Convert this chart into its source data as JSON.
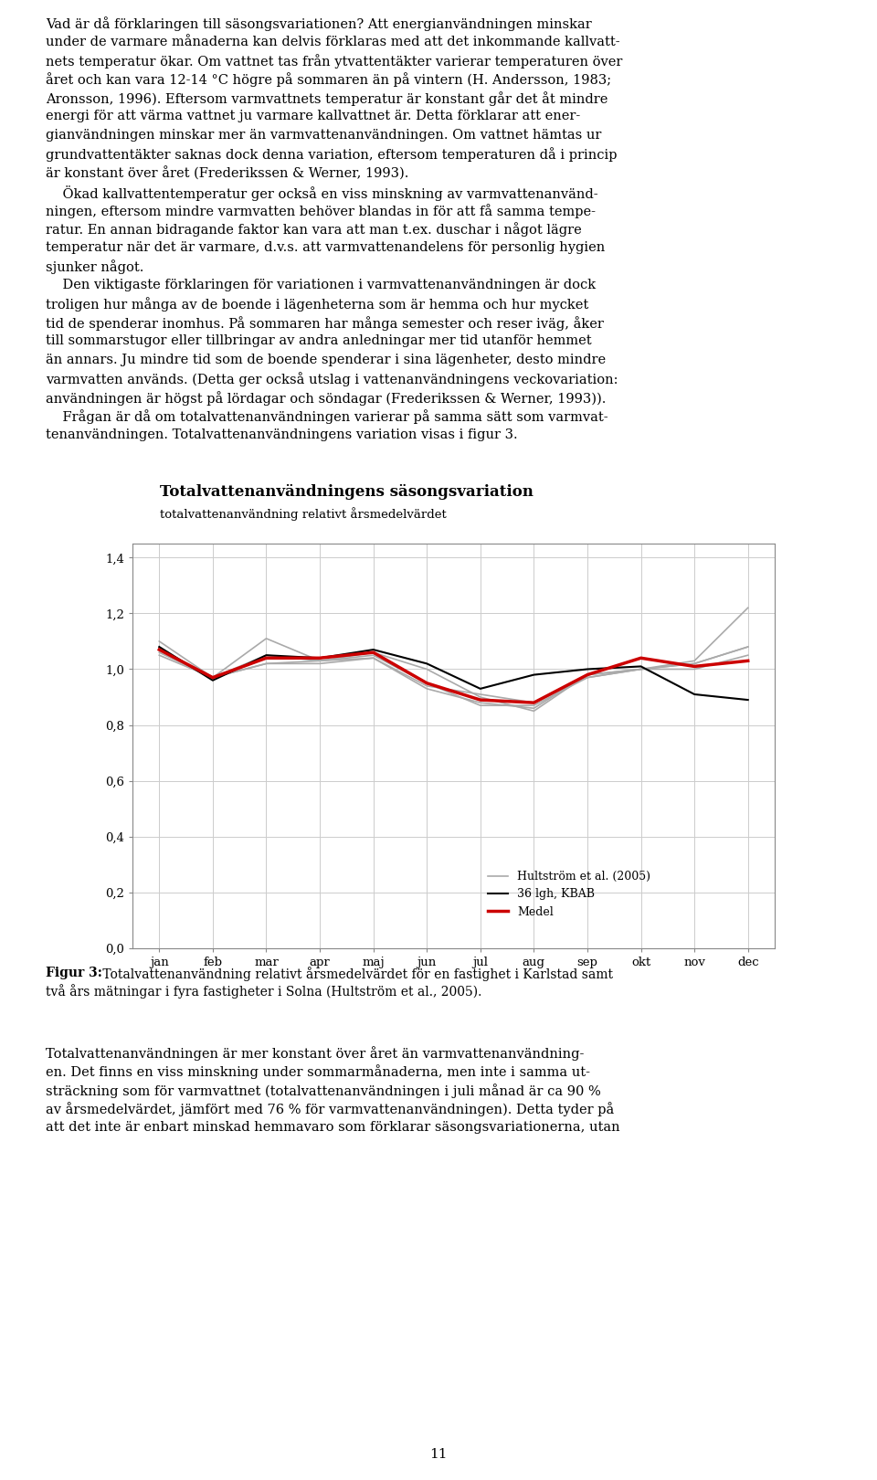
{
  "title": "Totalvattenanvändningens säsongsvariation",
  "subtitle": "totalvattenanvändning relativt årsmedelvärdet",
  "xlabel_ticks": [
    "jan",
    "feb",
    "mar",
    "apr",
    "maj",
    "jun",
    "jul",
    "aug",
    "sep",
    "okt",
    "nov",
    "dec"
  ],
  "ylim": [
    0.0,
    1.45
  ],
  "yticks": [
    0.0,
    0.2,
    0.4,
    0.6,
    0.8,
    1.0,
    1.2,
    1.4
  ],
  "ytick_labels": [
    "0,0",
    "0,2",
    "0,4",
    "0,6",
    "0,8",
    "1,0",
    "1,2",
    "1,4"
  ],
  "series_gray": [
    [
      1.07,
      0.97,
      1.05,
      1.03,
      1.05,
      0.95,
      0.87,
      0.87,
      0.97,
      1.0,
      1.02,
      1.08
    ],
    [
      1.06,
      0.97,
      1.02,
      1.03,
      1.06,
      1.0,
      0.9,
      0.85,
      0.98,
      1.0,
      1.03,
      1.22
    ],
    [
      1.1,
      0.97,
      1.11,
      1.03,
      1.04,
      0.93,
      0.88,
      0.86,
      0.98,
      1.0,
      1.0,
      1.05
    ],
    [
      1.05,
      0.97,
      1.02,
      1.02,
      1.04,
      0.94,
      0.91,
      0.88,
      0.97,
      1.0,
      1.02,
      1.08
    ]
  ],
  "series_black": [
    1.08,
    0.96,
    1.05,
    1.04,
    1.07,
    1.02,
    0.93,
    0.98,
    1.0,
    1.01,
    0.91,
    0.89
  ],
  "series_red": [
    1.07,
    0.97,
    1.04,
    1.04,
    1.06,
    0.95,
    0.89,
    0.88,
    0.98,
    1.04,
    1.01,
    1.03
  ],
  "color_gray": "#aaaaaa",
  "color_black": "#000000",
  "color_red": "#cc0000",
  "legend_gray": "Hultström et al. (2005)",
  "legend_black": "36 lgh, KBAB",
  "legend_red": "Medel",
  "title_fontsize": 12,
  "subtitle_fontsize": 9.5,
  "tick_fontsize": 9.5,
  "legend_fontsize": 9,
  "body_fontsize": 10.5,
  "caption_fontsize": 10.0,
  "footer_fontsize": 10.5,
  "background_color": "#ffffff",
  "page_text_color": "#000000",
  "body_text": [
    "Vad är då förklaringen till säsongsvariationen? Att energianvändningen minskar",
    "under de varmare månaderna kan delvis förklaras med att det inkommande kallvatt-",
    "nets temperatur ökar. Om vattnet tas från ytvattentäkter varierar temperaturen över",
    "året och kan vara 12-14 °C högre på sommaren än på vintern (H. Andersson, 1983;",
    "Aronsson, 1996). Eftersom varmvattnets temperatur är konstant går det åt mindre",
    "energi för att värma vattnet ju varmare kallvattnet är. Detta förklarar att ener-",
    "gianvändningen minskar mer än varmvattenanvändningen. Om vattnet hämtas ur",
    "grundvattentäkter saknas dock denna variation, eftersom temperaturen då i princip",
    "är konstant över året (Frederikssen & Werner, 1993).",
    "    Ökad kallvattentemperatur ger också en viss minskning av varmvattenanvänd-",
    "ningen, eftersom mindre varmvatten behöver blandas in för att få samma tempe-",
    "ratur. En annan bidragande faktor kan vara att man t.ex. duschar i något lägre",
    "temperatur när det är varmare, d.v.s. att varmvattenandelens för personlig hygien",
    "sjunker något.",
    "    Den viktigaste förklaringen för variationen i varmvattenanvändningen är dock",
    "troligen hur många av de boende i lägenheterna som är hemma och hur mycket",
    "tid de spenderar inomhus. På sommaren har många semester och reser iväg, åker",
    "till sommarstugor eller tillbringar av andra anledningar mer tid utanför hemmet",
    "än annars. Ju mindre tid som de boende spenderar i sina lägenheter, desto mindre",
    "varmvatten används. (Detta ger också utslag i vattenanvändningens veckovariation:",
    "användningen är högst på lördagar och söndagar (Frederikssen & Werner, 1993)).",
    "    Frågan är då om totalvattenanvändningen varierar på samma sätt som varmvat-",
    "tenanvändningen. Totalvattenanvändningens variation visas i figur 3."
  ],
  "caption_bold": "Figur 3:",
  "caption_normal": " Totalvattenanvändning relativt årsmedelvärdet för en fastighet i Karlstad samt",
  "caption_line2": "två års mätningar i fyra fastigheter i Solna (Hultström et al., 2005).",
  "footer_text": [
    "Totalvattenanvändningen är mer konstant över året än varmvattenanvändning-",
    "en. Det finns en viss minskning under sommarmånaderna, men inte i samma ut-",
    "sträckning som för varmvattnet (totalvattenanvändningen i juli månad är ca 90 %",
    "av årsmedelvärdet, jämfört med 76 % för varmvattenanvändningen). Detta tyder på",
    "att det inte är enbart minskad hemmavaro som förklarar säsongsvariationerna, utan"
  ],
  "page_number": "11"
}
